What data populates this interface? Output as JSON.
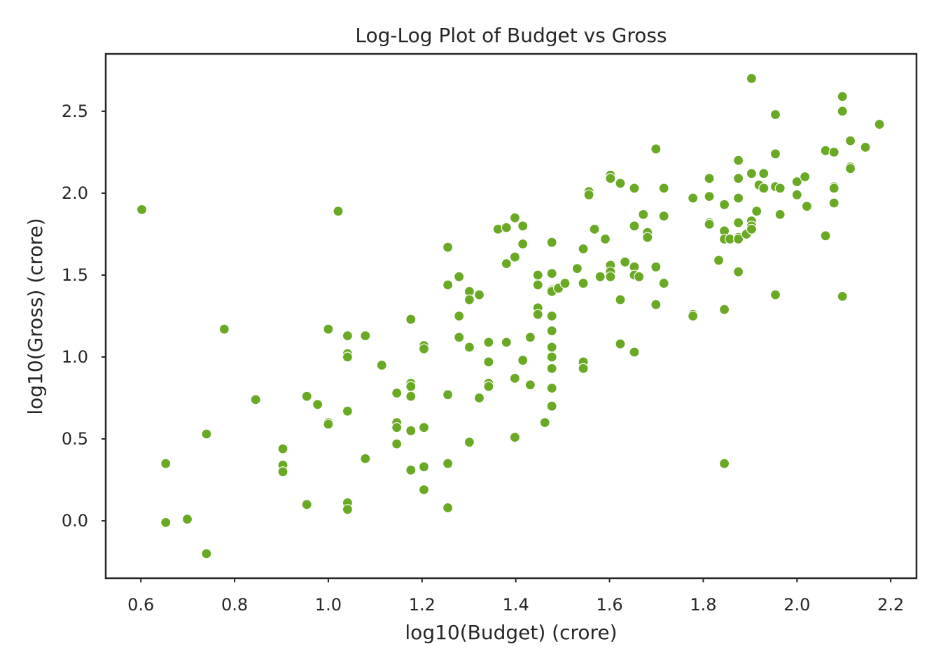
{
  "chart_data": {
    "type": "scatter",
    "title": "Log-Log Plot of Budget vs Gross",
    "xlabel": "log10(Budget) (crore)",
    "ylabel": "log10(Gross) (crore)",
    "xlim": [
      0.525,
      2.255
    ],
    "ylim": [
      -0.35,
      2.85
    ],
    "xticks": [
      "0.6",
      "0.8",
      "1.0",
      "1.2",
      "1.4",
      "1.6",
      "1.8",
      "2.0",
      "2.2"
    ],
    "yticks": [
      "0.0",
      "0.5",
      "1.0",
      "1.5",
      "2.0",
      "2.5"
    ],
    "grid": false,
    "marker_color": "#6aa924",
    "series": [
      {
        "points": [
          [
            0.602,
            1.9
          ],
          [
            0.653,
            0.35
          ],
          [
            0.653,
            -0.01
          ],
          [
            0.699,
            0.01
          ],
          [
            0.74,
            0.53
          ],
          [
            0.74,
            -0.2
          ],
          [
            0.778,
            1.17
          ],
          [
            0.845,
            0.74
          ],
          [
            0.903,
            0.44
          ],
          [
            0.903,
            0.34
          ],
          [
            0.903,
            0.3
          ],
          [
            0.954,
            0.76
          ],
          [
            0.954,
            0.1
          ],
          [
            0.977,
            0.71
          ],
          [
            1.0,
            1.17
          ],
          [
            1.0,
            0.6
          ],
          [
            1.0,
            0.59
          ],
          [
            1.021,
            1.89
          ],
          [
            1.041,
            1.13
          ],
          [
            1.041,
            1.02
          ],
          [
            1.041,
            1.0
          ],
          [
            1.041,
            0.67
          ],
          [
            1.041,
            0.11
          ],
          [
            1.041,
            0.07
          ],
          [
            1.079,
            1.13
          ],
          [
            1.079,
            0.38
          ],
          [
            1.114,
            0.95
          ],
          [
            1.146,
            0.78
          ],
          [
            1.146,
            0.6
          ],
          [
            1.146,
            0.57
          ],
          [
            1.146,
            0.47
          ],
          [
            1.176,
            1.23
          ],
          [
            1.176,
            0.84
          ],
          [
            1.176,
            0.82
          ],
          [
            1.176,
            0.76
          ],
          [
            1.176,
            0.55
          ],
          [
            1.176,
            0.31
          ],
          [
            1.204,
            1.07
          ],
          [
            1.204,
            1.05
          ],
          [
            1.204,
            0.57
          ],
          [
            1.204,
            0.33
          ],
          [
            1.204,
            0.19
          ],
          [
            1.255,
            1.67
          ],
          [
            1.255,
            1.44
          ],
          [
            1.255,
            0.77
          ],
          [
            1.255,
            0.35
          ],
          [
            1.255,
            0.08
          ],
          [
            1.279,
            1.49
          ],
          [
            1.279,
            1.25
          ],
          [
            1.279,
            1.12
          ],
          [
            1.301,
            1.4
          ],
          [
            1.301,
            1.35
          ],
          [
            1.301,
            1.06
          ],
          [
            1.301,
            0.48
          ],
          [
            1.322,
            1.38
          ],
          [
            1.322,
            0.75
          ],
          [
            1.342,
            1.09
          ],
          [
            1.342,
            0.97
          ],
          [
            1.342,
            0.84
          ],
          [
            1.342,
            0.82
          ],
          [
            1.362,
            1.78
          ],
          [
            1.38,
            1.79
          ],
          [
            1.38,
            1.57
          ],
          [
            1.38,
            1.09
          ],
          [
            1.398,
            1.85
          ],
          [
            1.398,
            1.61
          ],
          [
            1.398,
            0.87
          ],
          [
            1.398,
            0.51
          ],
          [
            1.415,
            1.8
          ],
          [
            1.415,
            1.69
          ],
          [
            1.415,
            0.98
          ],
          [
            1.431,
            1.12
          ],
          [
            1.431,
            0.83
          ],
          [
            1.447,
            1.5
          ],
          [
            1.447,
            1.44
          ],
          [
            1.447,
            1.3
          ],
          [
            1.447,
            1.26
          ],
          [
            1.462,
            0.6
          ],
          [
            1.477,
            1.7
          ],
          [
            1.477,
            1.51
          ],
          [
            1.477,
            1.41
          ],
          [
            1.477,
            1.4
          ],
          [
            1.477,
            1.25
          ],
          [
            1.477,
            1.16
          ],
          [
            1.477,
            1.06
          ],
          [
            1.477,
            1.0
          ],
          [
            1.477,
            0.93
          ],
          [
            1.477,
            0.81
          ],
          [
            1.477,
            0.7
          ],
          [
            1.491,
            1.42
          ],
          [
            1.505,
            1.45
          ],
          [
            1.531,
            1.54
          ],
          [
            1.544,
            1.66
          ],
          [
            1.544,
            1.45
          ],
          [
            1.544,
            0.97
          ],
          [
            1.544,
            0.93
          ],
          [
            1.556,
            2.01
          ],
          [
            1.556,
            1.99
          ],
          [
            1.568,
            1.78
          ],
          [
            1.58,
            1.49
          ],
          [
            1.591,
            1.72
          ],
          [
            1.602,
            2.11
          ],
          [
            1.602,
            2.09
          ],
          [
            1.602,
            1.56
          ],
          [
            1.602,
            1.52
          ],
          [
            1.602,
            1.49
          ],
          [
            1.623,
            2.06
          ],
          [
            1.623,
            1.35
          ],
          [
            1.623,
            1.08
          ],
          [
            1.633,
            1.58
          ],
          [
            1.653,
            2.03
          ],
          [
            1.653,
            1.8
          ],
          [
            1.653,
            1.55
          ],
          [
            1.653,
            1.5
          ],
          [
            1.653,
            1.03
          ],
          [
            1.663,
            1.49
          ],
          [
            1.672,
            1.87
          ],
          [
            1.681,
            1.76
          ],
          [
            1.681,
            1.73
          ],
          [
            1.699,
            2.27
          ],
          [
            1.699,
            1.55
          ],
          [
            1.699,
            1.32
          ],
          [
            1.716,
            2.03
          ],
          [
            1.716,
            1.86
          ],
          [
            1.716,
            1.45
          ],
          [
            1.778,
            1.97
          ],
          [
            1.778,
            1.26
          ],
          [
            1.778,
            1.25
          ],
          [
            1.813,
            2.09
          ],
          [
            1.813,
            1.98
          ],
          [
            1.813,
            1.82
          ],
          [
            1.813,
            1.81
          ],
          [
            1.833,
            1.59
          ],
          [
            1.845,
            1.93
          ],
          [
            1.845,
            1.77
          ],
          [
            1.845,
            1.72
          ],
          [
            1.845,
            1.29
          ],
          [
            1.845,
            0.35
          ],
          [
            1.857,
            1.72
          ],
          [
            1.875,
            2.2
          ],
          [
            1.875,
            2.09
          ],
          [
            1.875,
            1.97
          ],
          [
            1.875,
            1.82
          ],
          [
            1.875,
            1.73
          ],
          [
            1.875,
            1.72
          ],
          [
            1.875,
            1.52
          ],
          [
            1.892,
            1.75
          ],
          [
            1.903,
            2.7
          ],
          [
            1.903,
            2.12
          ],
          [
            1.903,
            1.83
          ],
          [
            1.903,
            1.8
          ],
          [
            1.903,
            1.78
          ],
          [
            1.914,
            1.89
          ],
          [
            1.919,
            2.05
          ],
          [
            1.929,
            2.12
          ],
          [
            1.929,
            2.03
          ],
          [
            1.954,
            2.48
          ],
          [
            1.954,
            2.24
          ],
          [
            1.954,
            2.04
          ],
          [
            1.954,
            1.38
          ],
          [
            1.964,
            2.03
          ],
          [
            1.964,
            1.87
          ],
          [
            2.0,
            2.07
          ],
          [
            2.0,
            1.99
          ],
          [
            2.017,
            2.1
          ],
          [
            2.021,
            1.92
          ],
          [
            2.061,
            2.26
          ],
          [
            2.061,
            1.74
          ],
          [
            2.079,
            2.25
          ],
          [
            2.079,
            2.04
          ],
          [
            2.079,
            2.03
          ],
          [
            2.079,
            1.94
          ],
          [
            2.097,
            2.59
          ],
          [
            2.097,
            2.5
          ],
          [
            2.097,
            1.37
          ],
          [
            2.114,
            2.32
          ],
          [
            2.114,
            2.16
          ],
          [
            2.114,
            2.15
          ],
          [
            2.146,
            2.28
          ],
          [
            2.176,
            2.42
          ]
        ]
      }
    ]
  }
}
